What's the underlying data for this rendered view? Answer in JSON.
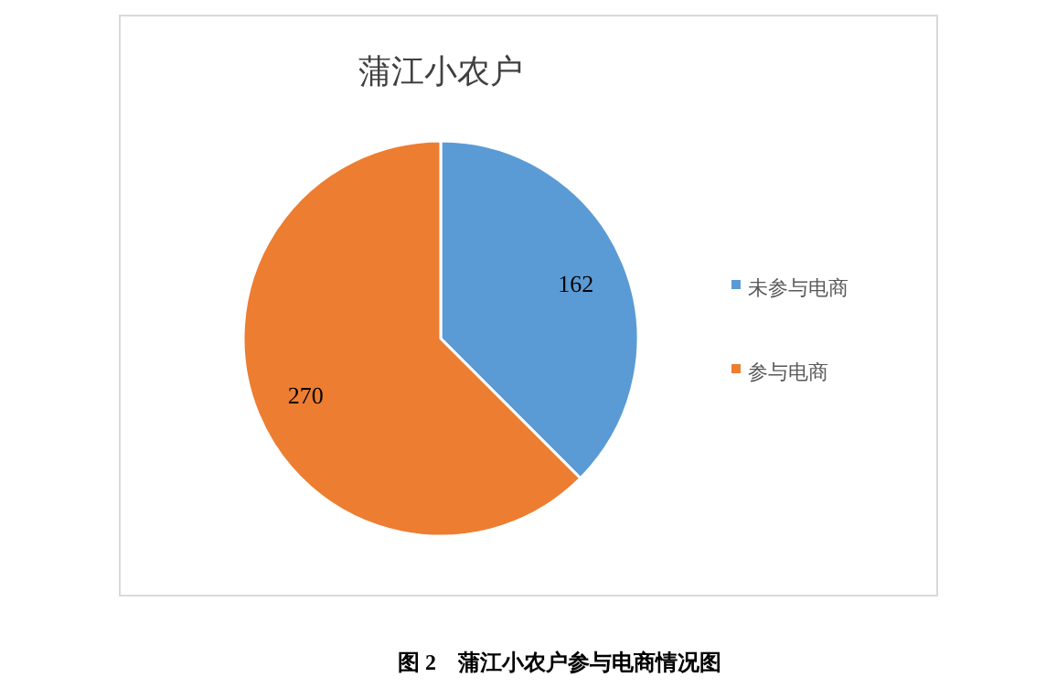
{
  "chart_data": {
    "type": "pie",
    "title": "蒲江小农户",
    "categories": [
      "未参与电商",
      "参与电商"
    ],
    "values": [
      162,
      270
    ],
    "colors": [
      "#5b9bd5",
      "#ed7d31"
    ],
    "data_labels": true,
    "legend": "right",
    "annotations": [
      "图 2　蒲江小农户参与电商情况图"
    ]
  }
}
